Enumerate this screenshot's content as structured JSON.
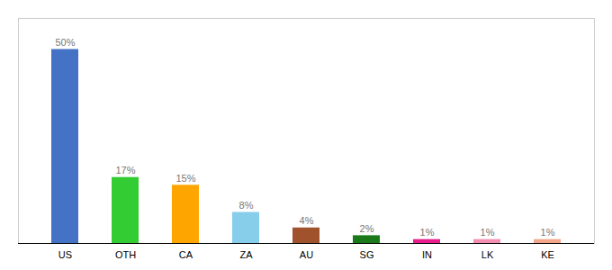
{
  "chart_data": {
    "type": "bar",
    "categories": [
      "US",
      "OTH",
      "CA",
      "ZA",
      "AU",
      "SG",
      "IN",
      "LK",
      "KE"
    ],
    "values": [
      50,
      17,
      15,
      8,
      4,
      2,
      1,
      1,
      1
    ],
    "value_labels": [
      "50%",
      "17%",
      "15%",
      "8%",
      "4%",
      "2%",
      "1%",
      "1%",
      "1%"
    ],
    "colors": [
      "#4472C4",
      "#33CC33",
      "#FFA500",
      "#87CEEB",
      "#A0522D",
      "#1A7A1A",
      "#E91E8C",
      "#F48FB1",
      "#F4A78A"
    ],
    "ylim": [
      0,
      58
    ],
    "data_labels": true,
    "tick_labels": "x",
    "grid": false
  }
}
